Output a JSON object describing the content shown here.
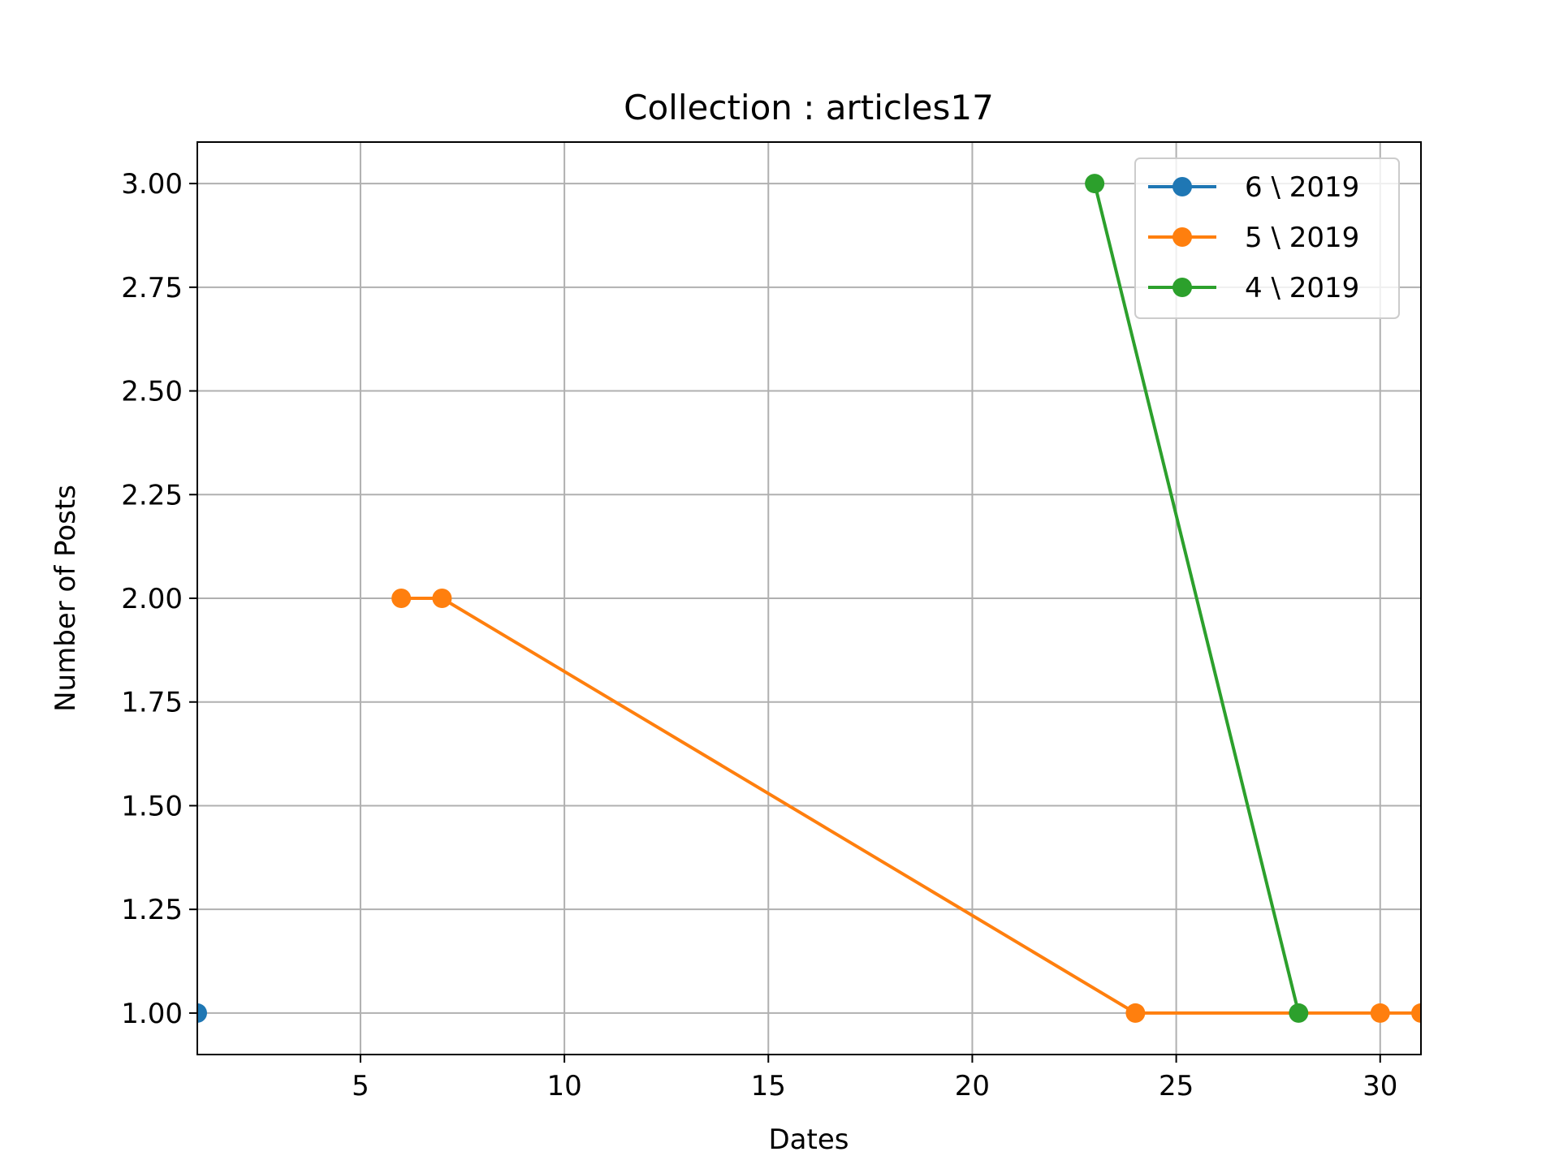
{
  "chart_data": {
    "type": "line",
    "title": "Collection : articles17",
    "xlabel": "Dates",
    "ylabel": "Number of Posts",
    "xlim": [
      1,
      31
    ],
    "ylim": [
      0.9,
      3.1
    ],
    "xticks": [
      5,
      10,
      15,
      20,
      25,
      30
    ],
    "yticks": [
      1.0,
      1.25,
      1.5,
      1.75,
      2.0,
      2.25,
      2.5,
      2.75,
      3.0
    ],
    "xtick_labels": [
      "5",
      "10",
      "15",
      "20",
      "25",
      "30"
    ],
    "ytick_labels": [
      "1.00",
      "1.25",
      "1.50",
      "1.75",
      "2.00",
      "2.25",
      "2.50",
      "2.75",
      "3.00"
    ],
    "grid": true,
    "legend_position": "top-right",
    "series": [
      {
        "name": "6 \\ 2019",
        "color": "#1f77b4",
        "x": [
          1
        ],
        "y": [
          1
        ]
      },
      {
        "name": "5 \\ 2019",
        "color": "#ff7f0e",
        "x": [
          6,
          7,
          24,
          30,
          31
        ],
        "y": [
          2,
          2,
          1,
          1,
          1
        ]
      },
      {
        "name": "4 \\ 2019",
        "color": "#2ca02c",
        "x": [
          23,
          28
        ],
        "y": [
          3,
          1
        ]
      }
    ]
  }
}
